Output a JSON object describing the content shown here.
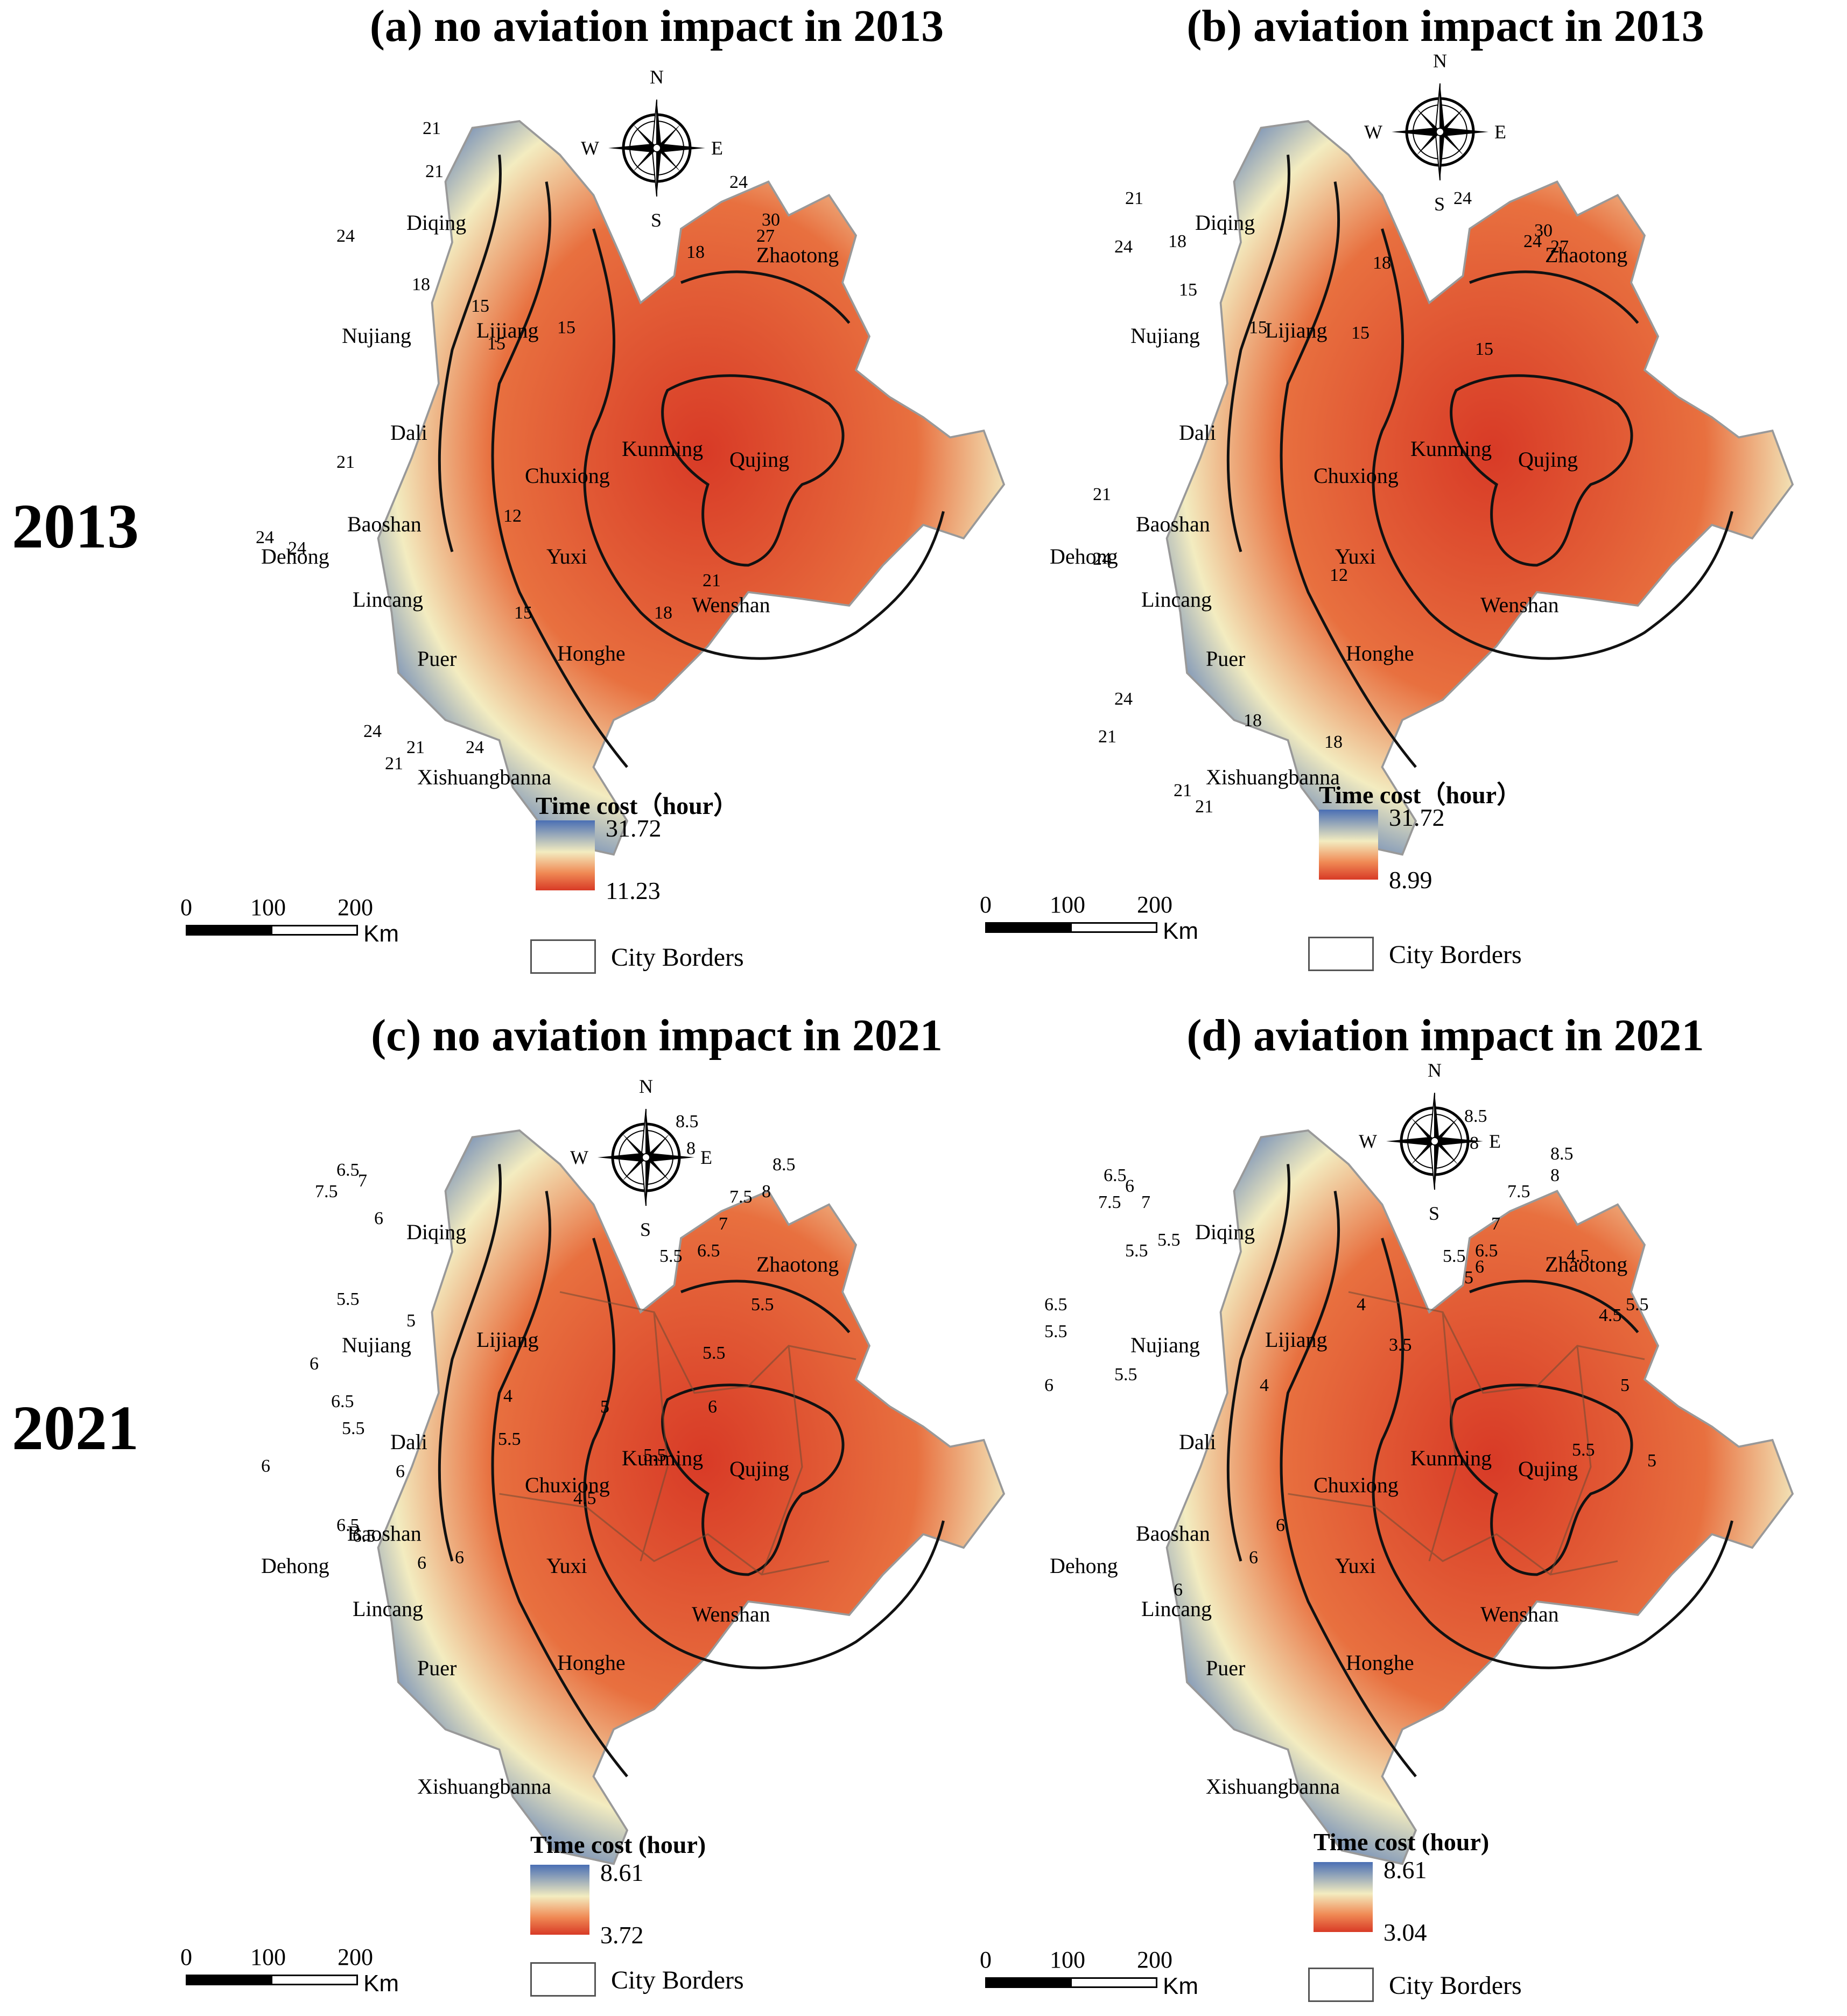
{
  "row_labels": [
    "2013",
    "2021"
  ],
  "colors": {
    "high": "#4a6fb4",
    "mid": "#f3ecc0",
    "low": "#d83a26"
  },
  "compass": {
    "n": "N",
    "s": "S",
    "e": "E",
    "w": "W"
  },
  "scalebar": {
    "ticks": [
      "0",
      "100",
      "200"
    ],
    "unit": "Km"
  },
  "borders_label": "City Borders",
  "panels": [
    {
      "title": "(a) no aviation impact in 2013",
      "legend": {
        "title": "Time cost（hour）",
        "max": "31.72",
        "min": "11.23"
      },
      "cities": [
        "Diqing",
        "Nujiang",
        "Lijiang",
        "Dali",
        "Chuxiong",
        "Kunming",
        "Qujing",
        "Baoshan",
        "Dehong",
        "Lincang",
        "Yuxi",
        "Wenshan",
        "Puer",
        "Honghe",
        "Xishuangbanna",
        "Zhaotong"
      ],
      "contours": [
        "21",
        "21",
        "24",
        "18",
        "15",
        "15",
        "15",
        "12",
        "21",
        "24",
        "24",
        "15",
        "18",
        "21",
        "24",
        "21",
        "24",
        "21",
        "18",
        "30",
        "27",
        "24"
      ]
    },
    {
      "title": "(b) aviation impact in 2013",
      "legend": {
        "title": "Time cost（hour）",
        "max": "31.72",
        "min": "8.99"
      },
      "cities": [
        "Diqing",
        "Nujiang",
        "Lijiang",
        "Dali",
        "Chuxiong",
        "Kunming",
        "Qujing",
        "Baoshan",
        "Dehong",
        "Lincang",
        "Yuxi",
        "Wenshan",
        "Puer",
        "Honghe",
        "Xishuangbanna",
        "Zhaotong"
      ],
      "contours": [
        "24",
        "21",
        "18",
        "15",
        "15",
        "15",
        "15",
        "12",
        "21",
        "24",
        "21",
        "18",
        "18",
        "21",
        "24",
        "21",
        "18",
        "30",
        "27",
        "24",
        "24"
      ]
    },
    {
      "title": "(c) no aviation impact in 2021",
      "legend": {
        "title": "Time cost (hour)",
        "max": "8.61",
        "min": "3.72"
      },
      "cities": [
        "Diqing",
        "Nujiang",
        "Lijiang",
        "Dali",
        "Chuxiong",
        "Kunming",
        "Qujing",
        "Baoshan",
        "Dehong",
        "Lincang",
        "Yuxi",
        "Wenshan",
        "Puer",
        "Honghe",
        "Xishuangbanna",
        "Zhaotong"
      ],
      "contours": [
        "7.5",
        "6.5",
        "7",
        "6",
        "5.5",
        "5",
        "6",
        "6.5",
        "5.5",
        "6",
        "4",
        "4.5",
        "5.5",
        "6",
        "6.5",
        "6",
        "6",
        "5.5",
        "5",
        "5.5",
        "5.5",
        "5.5",
        "6.5",
        "6",
        "8.5",
        "8",
        "8.5",
        "8",
        "7.5",
        "7",
        "6.5"
      ]
    },
    {
      "title": "(d) aviation impact in 2021",
      "legend": {
        "title": "Time cost (hour)",
        "max": "8.61",
        "min": "3.04"
      },
      "cities": [
        "Diqing",
        "Nujiang",
        "Lijiang",
        "Dali",
        "Chuxiong",
        "Kunming",
        "Qujing",
        "Baoshan",
        "Dehong",
        "Lincang",
        "Yuxi",
        "Wenshan",
        "Puer",
        "Honghe",
        "Xishuangbanna",
        "Zhaotong"
      ],
      "contours": [
        "7.5",
        "6.5",
        "6",
        "7",
        "5.5",
        "5.5",
        "6.5",
        "5.5",
        "6",
        "5.5",
        "4",
        "4",
        "3.5",
        "4.5",
        "5",
        "4.5",
        "5.5",
        "5",
        "5.5",
        "6",
        "6",
        "6",
        "8.5",
        "8",
        "8.5",
        "8",
        "7.5",
        "7",
        "6.5",
        "6",
        "5.5",
        "5"
      ]
    }
  ]
}
